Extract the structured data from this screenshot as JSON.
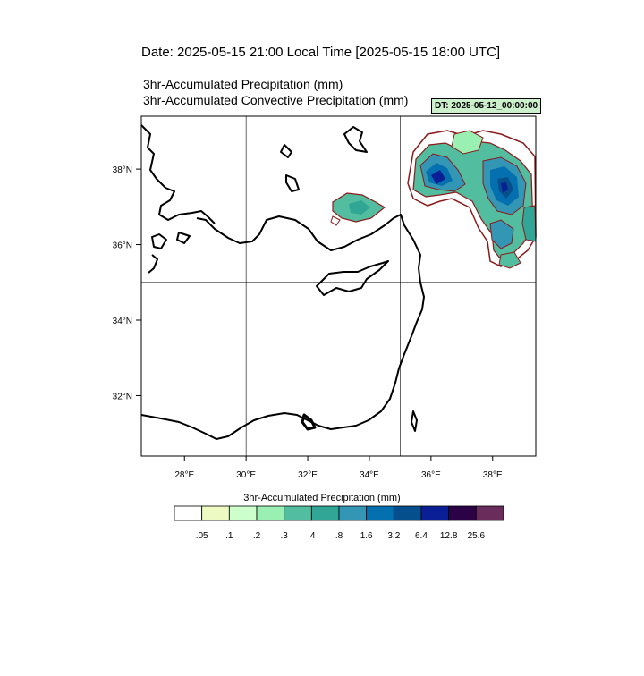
{
  "header": {
    "date_line": "Date: 2025-05-15  21:00 Local Time [2025-05-15  18:00 UTC]",
    "title_line1": "3hr-Accumulated Precipitation   (mm)",
    "title_line2": "3hr-Accumulated Convective Precipitation   (mm)",
    "dt_label": "DT: 2025-05-12_00:00:00"
  },
  "map": {
    "lon_labels": [
      "28°E",
      "30°E",
      "32°E",
      "34°E",
      "36°E",
      "38°E"
    ],
    "lat_labels": [
      "38°N",
      "36°N",
      "34°N",
      "32°N"
    ],
    "lon_range": [
      26.6,
      39.4
    ],
    "lat_range": [
      30.4,
      39.4
    ],
    "grid_lons": [
      30,
      35
    ],
    "grid_lats": [
      35
    ],
    "coastline_color": "#000000",
    "convective_contour_color": "#8b1a1a"
  },
  "colorbar": {
    "title": "3hr-Accumulated Precipitation  (mm)",
    "labels": [
      ".05",
      ".1",
      ".2",
      ".3",
      ".4",
      ".8",
      "1.6",
      "3.2",
      "6.4",
      "12.8",
      "25.6"
    ],
    "colors": [
      "#ffffff",
      "#edfac2",
      "#cdffcd",
      "#99f0b2",
      "#53bd9f",
      "#32a696",
      "#3296b4",
      "#0570b0",
      "#05508c",
      "#0a1f96",
      "#2c0246",
      "#6a2c5a"
    ]
  }
}
